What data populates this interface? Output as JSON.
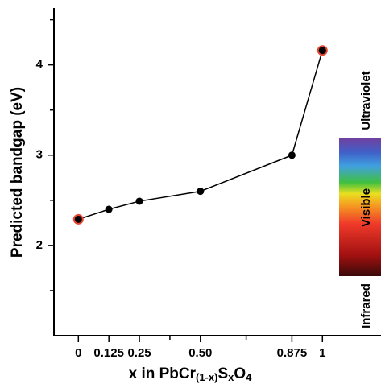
{
  "chart_data": {
    "type": "line",
    "xlabel_parts": [
      "x in PbCr",
      "(1-x)",
      "S",
      "x",
      "O",
      "4"
    ],
    "xlabel_subscript": [
      false,
      true,
      false,
      true,
      false,
      true
    ],
    "ylabel": "Predicted bandgap (eV)",
    "x": [
      0,
      0.125,
      0.25,
      0.5,
      0.875,
      1
    ],
    "series": [
      {
        "color": "#000000",
        "values": [
          2.29,
          2.4,
          2.49,
          2.6,
          3.0,
          4.16
        ]
      }
    ],
    "highlighted_points": [
      0,
      5
    ],
    "highlight_color": "#e8462f",
    "xlim": [
      -0.1,
      1.24
    ],
    "ylim": [
      1.0,
      4.63
    ],
    "xticks": [
      0,
      0.125,
      0.25,
      {
        "value": 0.5,
        "label": "0.50"
      },
      0.875,
      1
    ],
    "xminor_ticks": [
      0.375,
      0.6875
    ],
    "yticks": [
      2,
      3,
      4
    ],
    "yminor_ticks": [
      1.5,
      2.5,
      3.5,
      4.5
    ],
    "annotations": [
      "Ultraviolet",
      "Visible",
      "Infrared"
    ]
  }
}
